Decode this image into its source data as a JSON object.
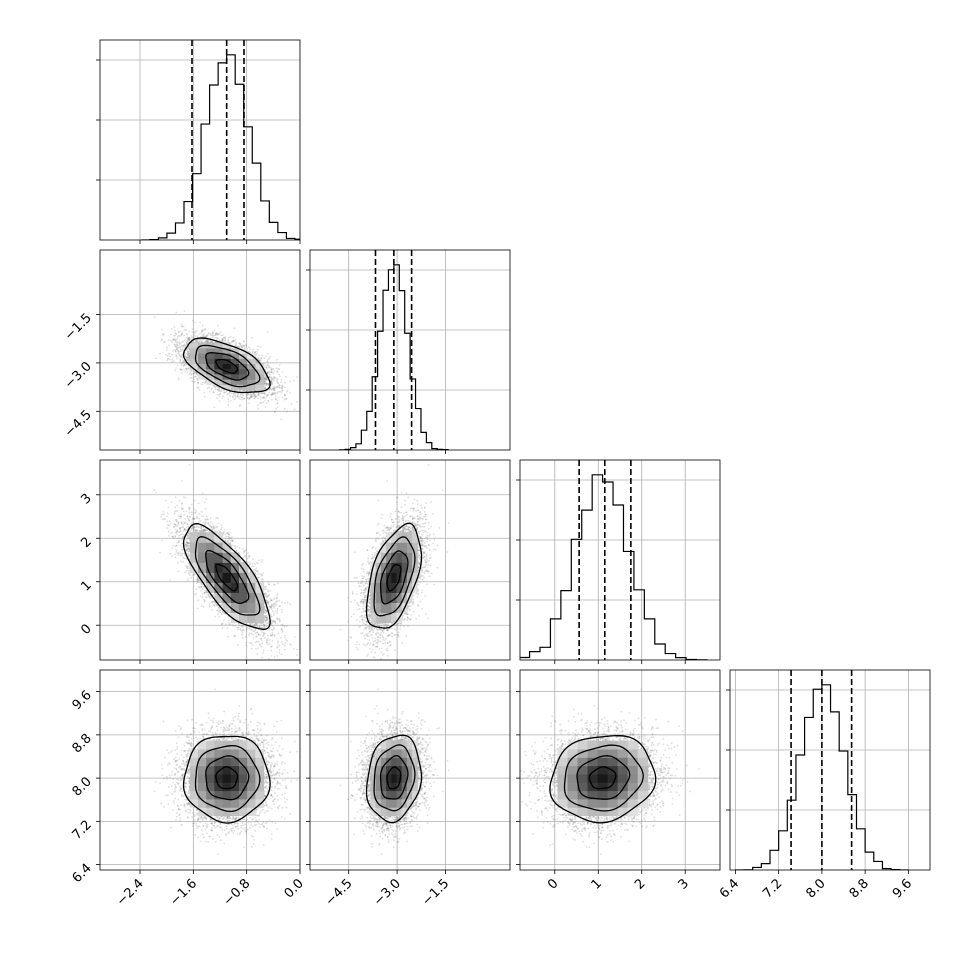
{
  "chart_data": {
    "type": "corner",
    "title": "",
    "grid": true,
    "colors": {
      "points": "#7a7a7a",
      "lines": "#000000",
      "grid": "#b0b0b0"
    },
    "parameters": [
      {
        "label": "",
        "mean": -1.1,
        "sd": 0.32,
        "range": [
          -3.0,
          0.0
        ],
        "ticks": [
          -2.4,
          -1.6,
          -0.8,
          0.0
        ],
        "tick_labels": [
          "−2.4",
          "−1.6",
          "−0.8",
          "0.0"
        ],
        "quantiles": [
          -1.62,
          -1.1,
          -0.84
        ]
      },
      {
        "label": "",
        "mean": -3.1,
        "sd": 0.42,
        "range": [
          -5.7,
          0.5
        ],
        "ticks": [
          -4.5,
          -3.0,
          -1.5
        ],
        "tick_labels": [
          "−4.5",
          "−3.0",
          "−1.5"
        ],
        "quantiles": [
          -3.67,
          -3.1,
          -2.55
        ]
      },
      {
        "label": "",
        "mean": 1.1,
        "sd": 0.6,
        "range": [
          -0.8,
          3.8
        ],
        "ticks": [
          0,
          1,
          2,
          3
        ],
        "tick_labels": [
          "0",
          "1",
          "2",
          "3"
        ],
        "quantiles": [
          0.56,
          1.15,
          1.75
        ]
      },
      {
        "label": "",
        "mean": 8.0,
        "sd": 0.4,
        "range": [
          6.3,
          10.0
        ],
        "ticks": [
          6.4,
          7.2,
          8.0,
          8.8,
          9.6
        ],
        "tick_labels": [
          "6.4",
          "7.2",
          "8.0",
          "8.8",
          "9.6"
        ],
        "quantiles": [
          7.43,
          8.0,
          8.55
        ]
      }
    ],
    "correlations": [
      {
        "pair": [
          0,
          1
        ],
        "r": -0.55
      },
      {
        "pair": [
          0,
          2
        ],
        "r": -0.75
      },
      {
        "pair": [
          1,
          2
        ],
        "r": 0.5
      },
      {
        "pair": [
          0,
          3
        ],
        "r": 0.0
      },
      {
        "pair": [
          1,
          3
        ],
        "r": 0.15
      },
      {
        "pair": [
          2,
          3
        ],
        "r": 0.1
      }
    ],
    "contour_sigma_levels": [
      0.5,
      1.0,
      1.5,
      2.0
    ],
    "histogram_bins": 20,
    "sample_count": 6000
  }
}
